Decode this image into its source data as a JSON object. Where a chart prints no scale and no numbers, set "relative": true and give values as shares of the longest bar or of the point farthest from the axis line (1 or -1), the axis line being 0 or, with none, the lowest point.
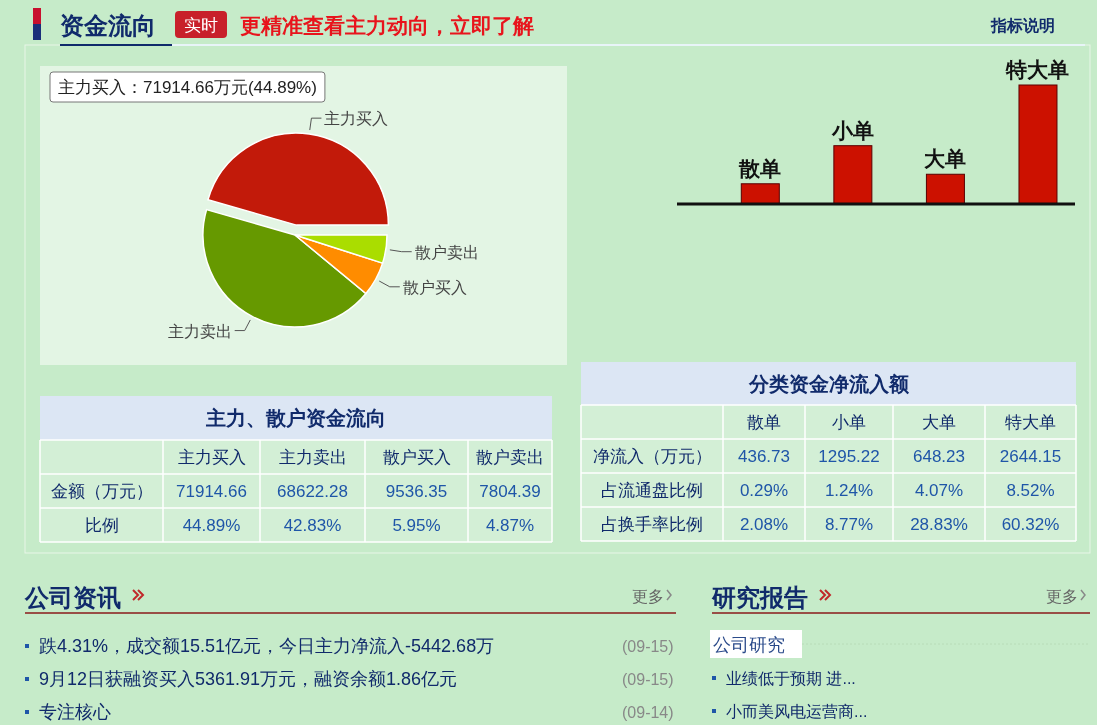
{
  "chart_data": [
    {
      "type": "other",
      "title": "资金流向",
      "annotations": [
        "实时",
        "更精准查看主力动向，立即了解",
        "指标说明"
      ]
    },
    {
      "type": "pie",
      "categories": [
        "主力买入",
        "主力卖出",
        "散户买入",
        "散户卖出"
      ],
      "values": [
        44.89,
        42.83,
        5.95,
        4.87
      ],
      "colors": [
        "#c21a0a",
        "#669900",
        "#ff8c00",
        "#aadd00"
      ],
      "annotations": [
        "主力买入：71914.66万元(44.89%)"
      ]
    },
    {
      "type": "bar",
      "relative": true,
      "categories": [
        "散单",
        "小单",
        "大单",
        "特大单"
      ],
      "values": [
        0.17,
        0.49,
        0.25,
        1
      ],
      "color": "#cc1100"
    },
    {
      "type": "other",
      "title": "主力、散户资金流向",
      "categories": [
        "主力买入",
        "主力卖出",
        "散户买入",
        "散户卖出"
      ],
      "y_categories": [
        "金额（万元）",
        "比例"
      ],
      "cell_labels": [
        [
          "71914.66",
          "68622.28",
          "9536.35",
          "7804.39"
        ],
        [
          "44.89%",
          "42.83%",
          "5.95%",
          "4.87%"
        ]
      ]
    },
    {
      "type": "other",
      "title": "分类资金净流入额",
      "categories": [
        "散单",
        "小单",
        "大单",
        "特大单"
      ],
      "y_categories": [
        "净流入（万元）",
        "占流通盘比例",
        "占换手率比例"
      ],
      "cell_labels": [
        [
          "436.73",
          "1295.22",
          "648.23",
          "2644.15"
        ],
        [
          "0.29%",
          "1.24%",
          "4.07%",
          "8.52%"
        ],
        [
          "2.08%",
          "8.77%",
          "28.83%",
          "60.32%"
        ]
      ]
    },
    {
      "type": "other",
      "title": "公司资讯",
      "annotations": [
        "更多",
        "跌4.31%，成交额15.51亿元，今日主力净流入-5442.68万",
        "(09-15)",
        "9月12日获融资买入5361.91万元，融资余额1.86亿元",
        "(09-15)",
        "专注核心",
        "(09-14)"
      ]
    },
    {
      "type": "other",
      "title": "研究报告",
      "subtitle": "公司研究",
      "annotations": [
        "更多",
        "业绩低于预期 进...",
        "小而美风电运营商..."
      ]
    }
  ]
}
